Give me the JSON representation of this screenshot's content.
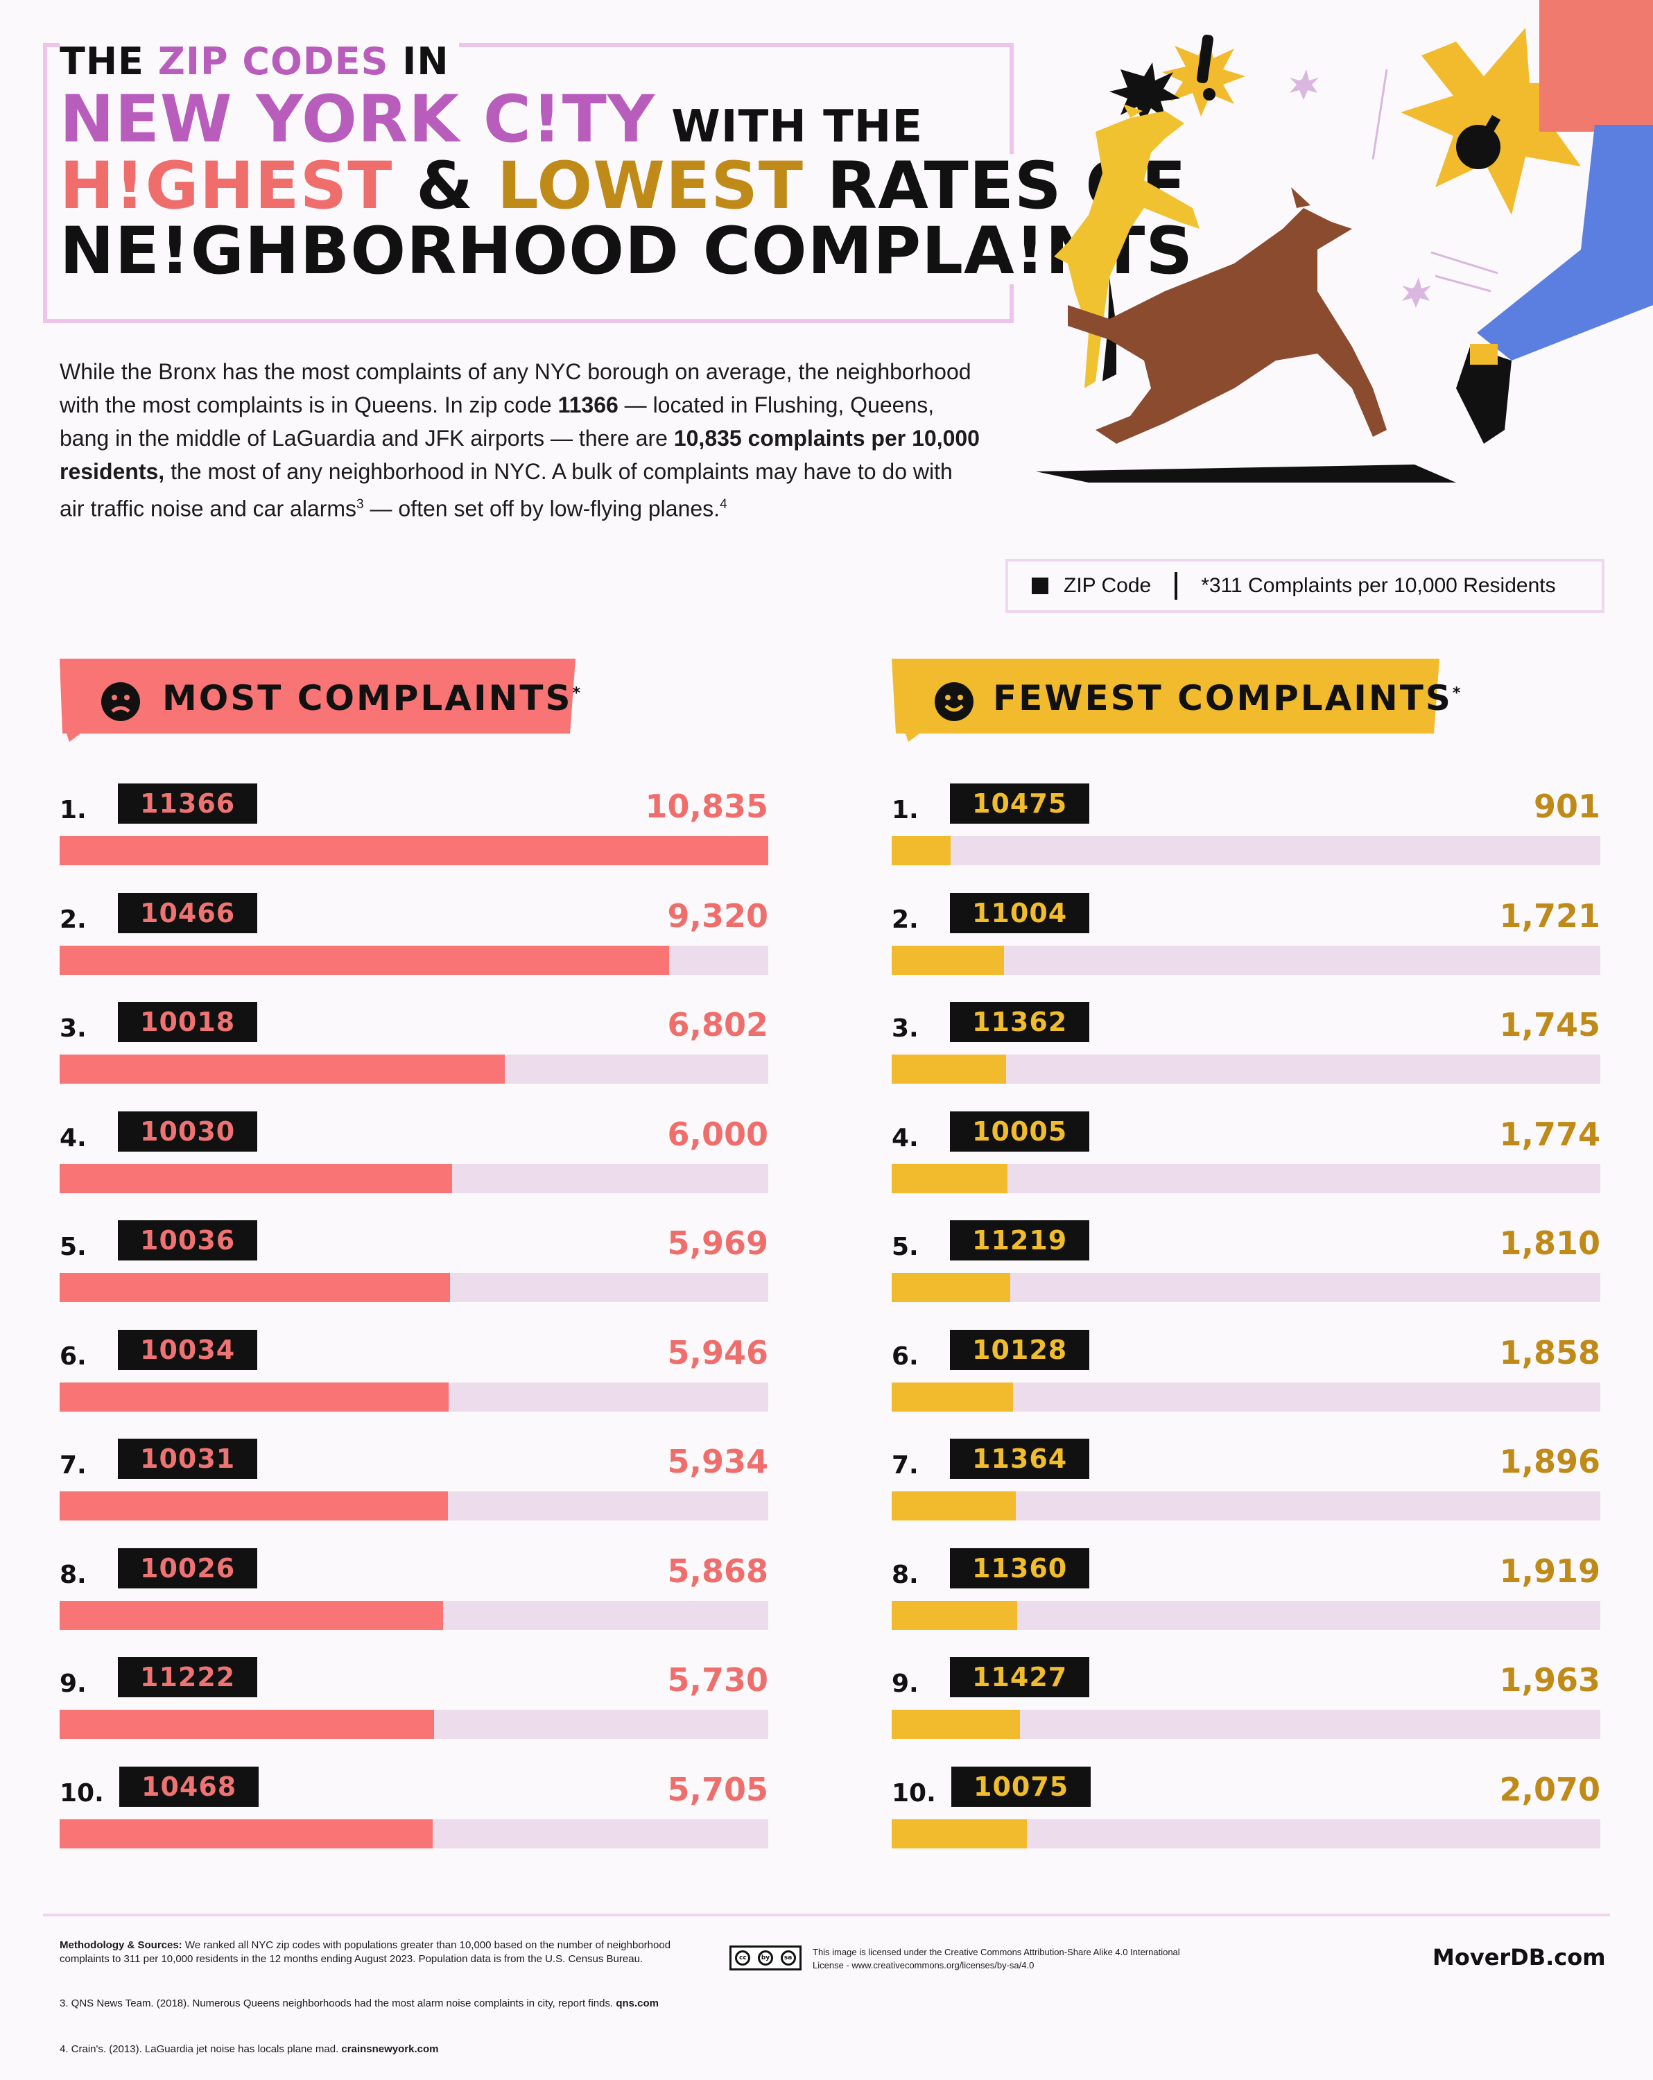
{
  "title": {
    "line1_a": "THE ",
    "line1_b": "ZIP CODES",
    "line1_c": " IN",
    "line2_a": "NEW YORK C!TY",
    "line2_b": " WITH THE",
    "line3_a": "H!GHEST",
    "line3_b": " & ",
    "line3_c": "LOWEST",
    "line3_d": " RATES OF",
    "line4": "NE!GHBORHOOD COMPLA!NTS"
  },
  "intro": {
    "p1": "While the Bronx has the most complaints of any NYC borough on average, the neighborhood with the most complaints is in Queens. In zip code ",
    "b1": "11366",
    "p2": " — located in Flushing, Queens, bang in the middle of LaGuardia and JFK airports — there are ",
    "b2": "10,835 complaints per 10,000 residents,",
    "p3": " the most of any neighborhood in NYC. A bulk of complaints may have to do with air traffic noise and car alarms",
    "sup1": "3",
    "p4": " — often set off by low-flying planes.",
    "sup2": "4"
  },
  "legend": {
    "zip": "ZIP Code",
    "metric": "*311 Complaints per 10,000 Residents"
  },
  "colors": {
    "most": "#f87475",
    "fewest": "#f2bb2d",
    "track": "#ecdcec"
  },
  "chart_data": [
    {
      "type": "bar",
      "title": "MOST COMPLAINTS",
      "title_mark": "*",
      "ranks": [
        "1.",
        "2.",
        "3.",
        "4.",
        "5.",
        "6.",
        "7.",
        "8.",
        "9.",
        "10."
      ],
      "categories": [
        "11366",
        "10466",
        "10018",
        "10030",
        "10036",
        "10034",
        "10031",
        "10026",
        "11222",
        "10468"
      ],
      "values": [
        10835,
        9320,
        6802,
        6000,
        5969,
        5946,
        5934,
        5868,
        5730,
        5705
      ],
      "labels": [
        "10,835",
        "9,320",
        "6,802",
        "6,000",
        "5,969",
        "5,946",
        "5,934",
        "5,868",
        "5,730",
        "5,705"
      ],
      "xlim": [
        0,
        10835
      ]
    },
    {
      "type": "bar",
      "title": "FEWEST COMPLAINTS",
      "title_mark": "*",
      "ranks": [
        "1.",
        "2.",
        "3.",
        "4.",
        "5.",
        "6.",
        "7.",
        "8.",
        "9.",
        "10."
      ],
      "categories": [
        "10475",
        "11004",
        "11362",
        "10005",
        "11219",
        "10128",
        "11364",
        "11360",
        "11427",
        "10075"
      ],
      "values": [
        901,
        1721,
        1745,
        1774,
        1810,
        1858,
        1896,
        1919,
        1963,
        2070
      ],
      "labels": [
        "901",
        "1,721",
        "1,745",
        "1,774",
        "1,810",
        "1,858",
        "1,896",
        "1,919",
        "1,963",
        "2,070"
      ],
      "xlim": [
        0,
        10835
      ]
    }
  ],
  "footer": {
    "meth_bold": "Methodology & Sources:",
    "meth_text": " We ranked all NYC zip codes with populations greater than 10,000 based on the number of neighborhood complaints to 311 per 10,000 residents in the 12 months ending August 2023. Population data is from the U.S. Census Bureau.",
    "note3_text": "3. QNS News Team. (2018). Numerous Queens neighborhoods had the most alarm noise complaints in city, report finds. ",
    "note3_bold": "qns.com",
    "note4_text": "4. Crain's. (2013). LaGuardia jet noise has locals plane mad. ",
    "note4_bold": "crainsnewyork.com",
    "license": "This image is licensed under the Creative Commons Attribution-Share Alike 4.0 International License - www.creativecommons.org/licenses/by-sa/4.0",
    "cc_icons": [
      "cc",
      "by",
      "sa"
    ],
    "brand": "MoverDB.com"
  }
}
